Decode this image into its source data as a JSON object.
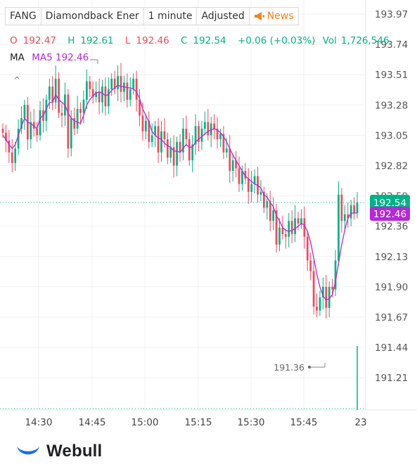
{
  "toolbar": {
    "symbol": "FANG",
    "name": "Diamondback Ener",
    "interval": "1 minute",
    "adjust": "Adjusted",
    "news": "News"
  },
  "ohlc": {
    "o_label": "O",
    "o": "192.47",
    "h_label": "H",
    "h": "192.61",
    "l_label": "L",
    "l": "192.46",
    "c_label": "C",
    "c": "192.54",
    "change": "+0.06 (+0.03%)",
    "vol_label": "Vol",
    "vol": "1,726,546"
  },
  "ma": {
    "label": "MA",
    "ma5": "MA5 192.46"
  },
  "colors": {
    "up": "#00b386",
    "down": "#f2495e",
    "ma5": "#b529d6",
    "brand": "#1a6cf0"
  },
  "brand": {
    "name": "Webull"
  },
  "chart_data": {
    "type": "candlestick",
    "y_ticks": [
      "193.97",
      "193.74",
      "193.51",
      "193.28",
      "193.05",
      "192.82",
      "192.59",
      "192.36",
      "192.13",
      "191.90",
      "191.67",
      "191.44",
      "191.21"
    ],
    "x_ticks": [
      "14:30",
      "14:45",
      "15:00",
      "15:15",
      "15:30",
      "15:45",
      "23"
    ],
    "ylim": [
      191.03,
      194.0
    ],
    "current_price": "192.54",
    "ma5_value": "192.46",
    "low_marker": "191.36",
    "series_close": [
      193.07,
      193.01,
      192.92,
      192.84,
      192.95,
      193.1,
      193.18,
      193.28,
      193.02,
      193.15,
      193.1,
      193.05,
      193.24,
      193.16,
      193.32,
      193.42,
      193.3,
      193.48,
      193.22,
      193.2,
      193.36,
      192.95,
      193.18,
      193.1,
      193.25,
      193.22,
      193.32,
      193.46,
      193.4,
      193.34,
      193.38,
      193.3,
      193.42,
      193.27,
      193.4,
      193.48,
      193.4,
      193.5,
      193.38,
      193.45,
      193.32,
      193.4,
      193.48,
      193.32,
      193.2,
      193.08,
      193.16,
      193.0,
      193.05,
      193.12,
      192.92,
      193.08,
      193.02,
      192.88,
      192.96,
      192.82,
      193.0,
      192.92,
      193.1,
      193.02,
      192.86,
      192.98,
      193.12,
      193.0,
      193.1,
      193.15,
      193.05,
      193.14,
      193.1,
      193.02,
      193.06,
      192.92,
      192.95,
      192.78,
      192.86,
      192.8,
      192.68,
      192.78,
      192.72,
      192.62,
      192.68,
      192.74,
      192.6,
      192.62,
      192.5,
      192.55,
      192.4,
      192.48,
      192.22,
      192.35,
      192.3,
      192.28,
      192.4,
      192.3,
      192.42,
      192.38,
      192.42,
      192.28,
      192.1,
      192.02,
      191.75,
      191.72,
      191.82,
      191.9,
      191.74,
      191.9,
      191.88,
      192.1,
      192.6,
      192.4,
      192.45,
      192.42,
      192.52,
      192.46,
      192.54
    ],
    "ma5": [
      193.05,
      193.02,
      192.98,
      192.95,
      192.98,
      193.05,
      193.12,
      193.18,
      193.15,
      193.14,
      193.12,
      193.1,
      193.18,
      193.2,
      193.25,
      193.3,
      193.3,
      193.36,
      193.32,
      193.3,
      193.28,
      193.22,
      193.18,
      193.16,
      193.15,
      193.14,
      193.2,
      193.28,
      193.32,
      193.35,
      193.37,
      193.38,
      193.37,
      193.35,
      193.36,
      193.39,
      193.41,
      193.43,
      193.42,
      193.42,
      193.41,
      193.41,
      193.4,
      193.38,
      193.33,
      193.25,
      193.2,
      193.15,
      193.08,
      193.05,
      193.03,
      193.02,
      192.99,
      192.97,
      192.96,
      192.93,
      192.93,
      192.92,
      192.95,
      192.98,
      192.96,
      192.96,
      193.0,
      193.02,
      193.04,
      193.06,
      193.08,
      193.09,
      193.1,
      193.09,
      193.07,
      193.04,
      193.0,
      192.95,
      192.9,
      192.86,
      192.82,
      192.78,
      192.74,
      192.72,
      192.7,
      192.68,
      192.67,
      192.65,
      192.6,
      192.58,
      192.54,
      192.51,
      192.44,
      192.4,
      192.35,
      192.33,
      192.32,
      192.33,
      192.34,
      192.36,
      192.38,
      192.37,
      192.32,
      192.24,
      192.12,
      192.0,
      191.9,
      191.83,
      191.8,
      191.81,
      191.84,
      191.94,
      192.08,
      192.22,
      192.33,
      192.42,
      192.46,
      192.46,
      192.46
    ]
  }
}
